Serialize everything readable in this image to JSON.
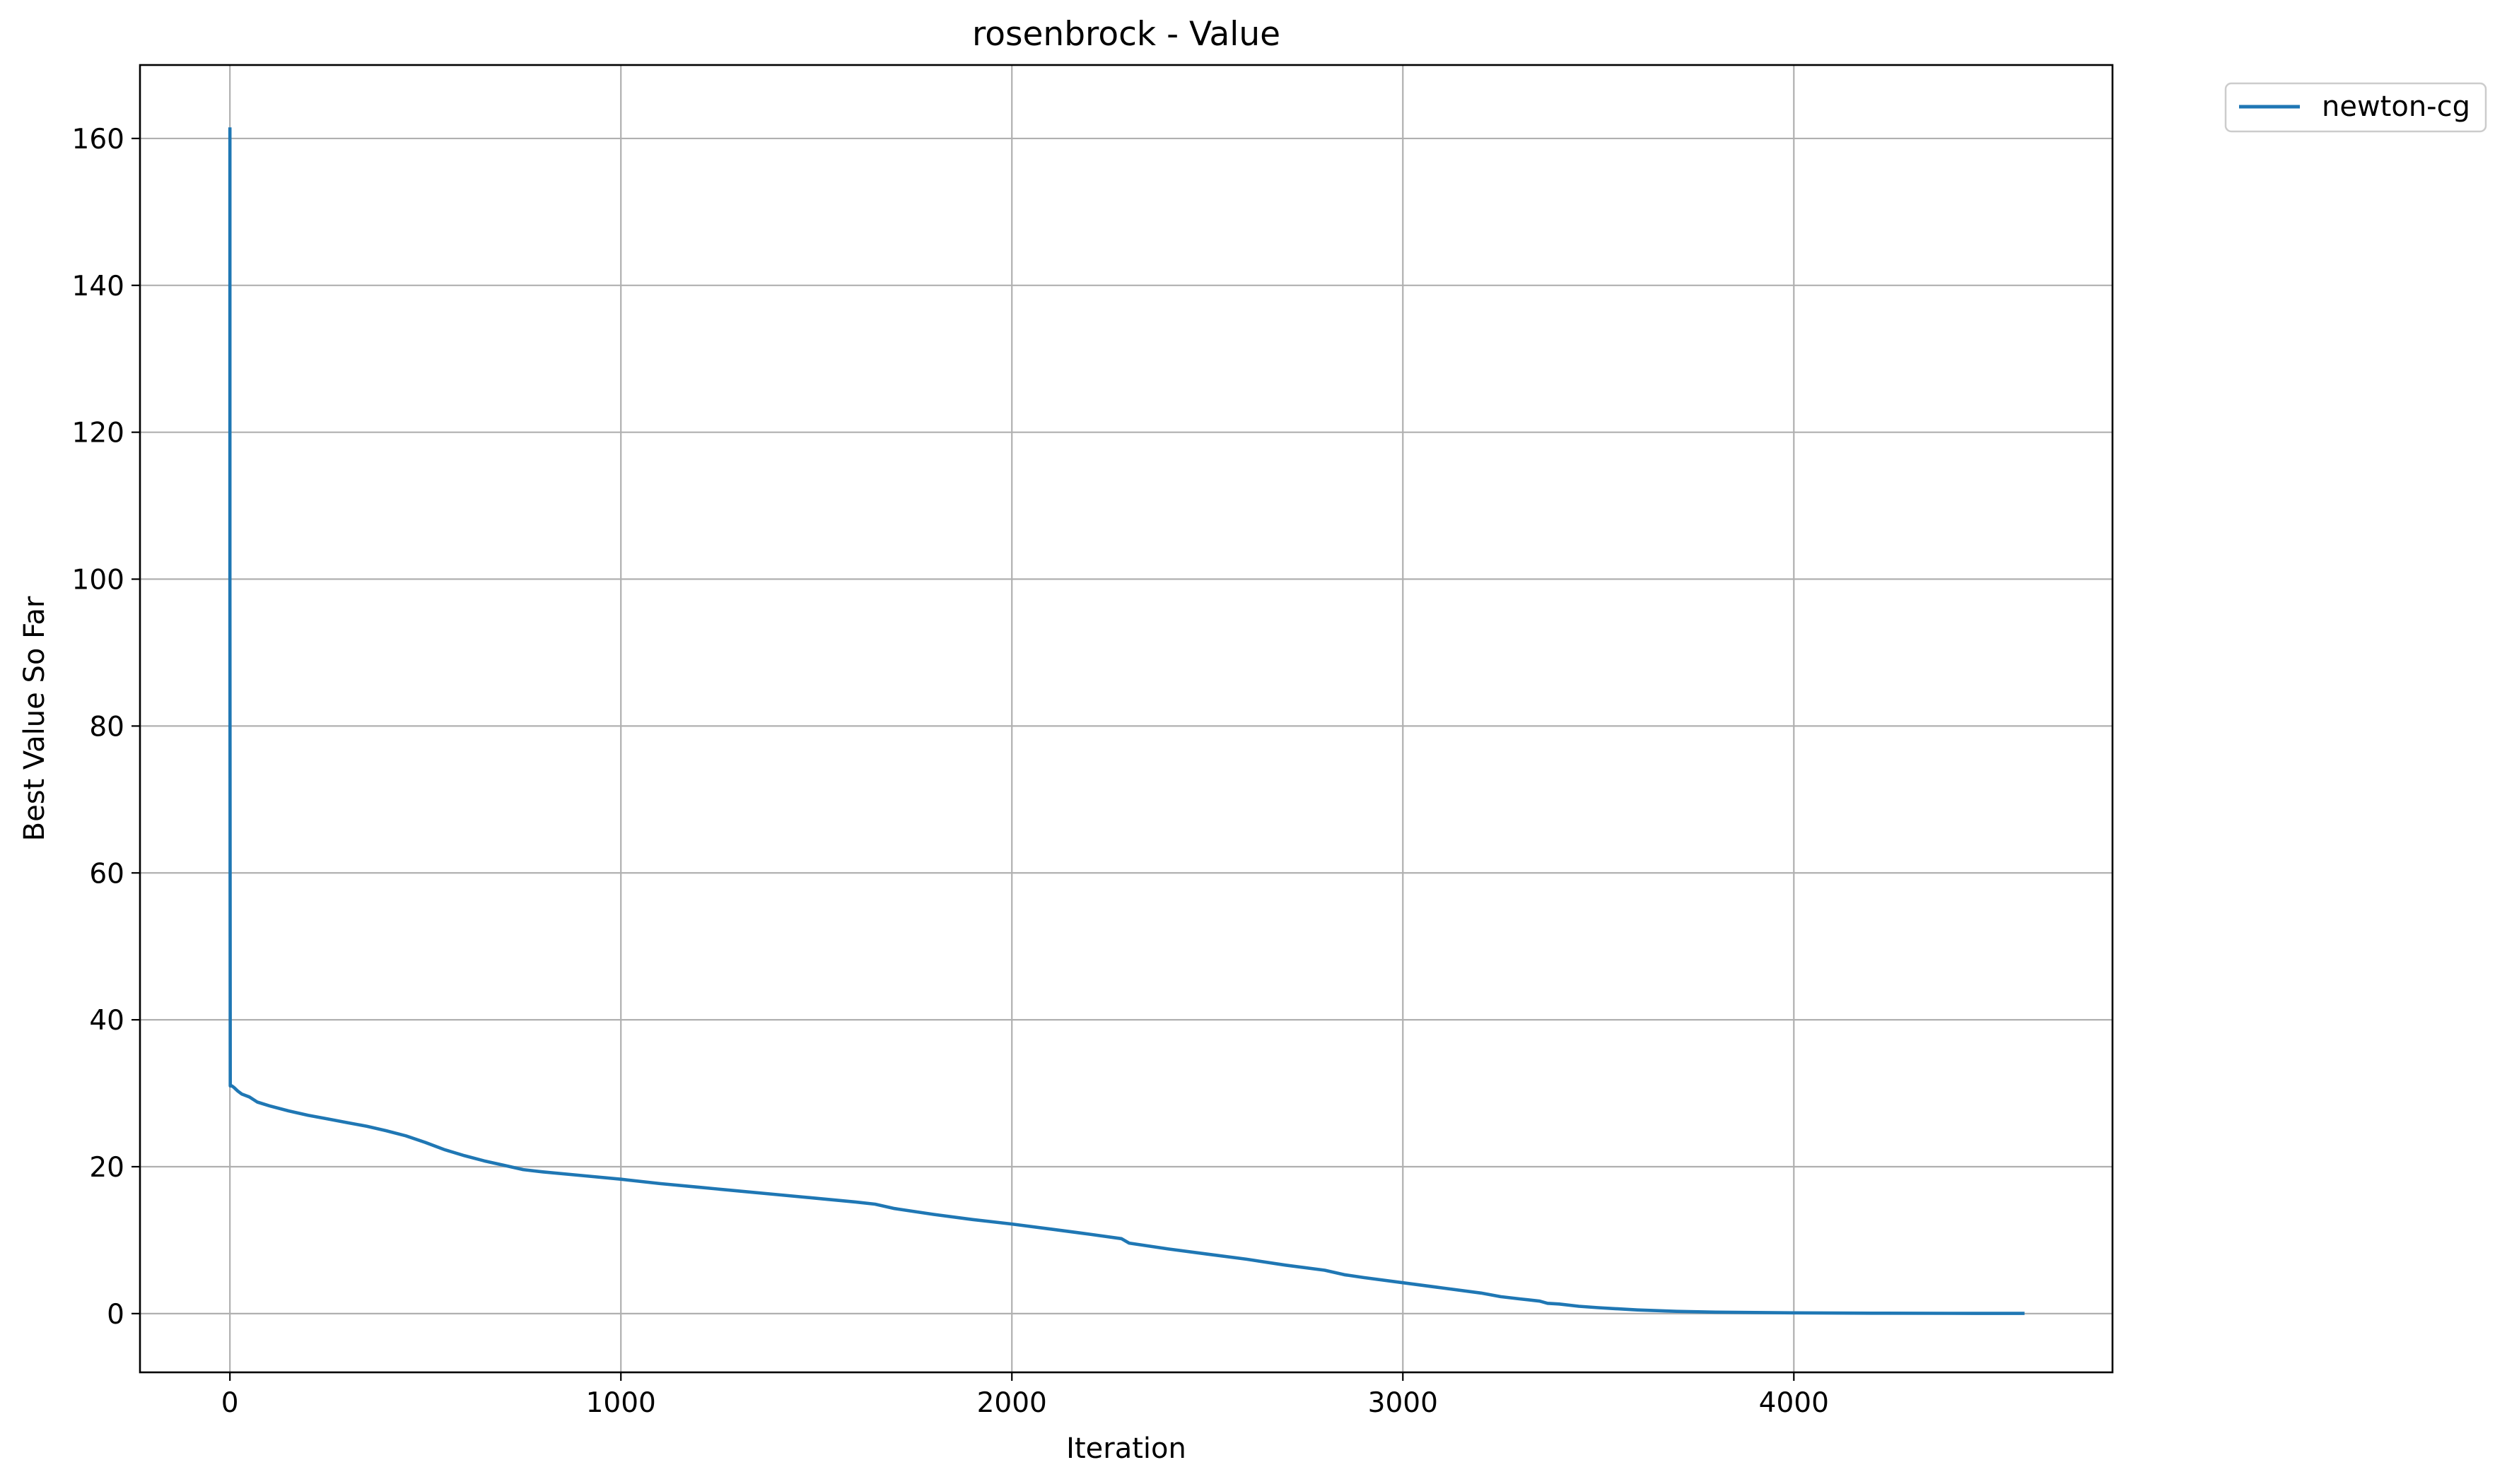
{
  "chart_data": {
    "type": "line",
    "title": "rosenbrock - Value",
    "xlabel": "Iteration",
    "ylabel": "Best Value So Far",
    "xlim": [
      -230,
      4815
    ],
    "ylim": [
      -8,
      170
    ],
    "xticks": [
      0,
      1000,
      2000,
      3000,
      4000
    ],
    "yticks": [
      0,
      20,
      40,
      60,
      80,
      100,
      120,
      140,
      160
    ],
    "grid": true,
    "legend_position": "outside-top-right",
    "colors": {
      "line": "#1f77b4",
      "grid": "#b0b0b0",
      "axes": "#000000"
    },
    "series": [
      {
        "name": "newton-cg",
        "color": "#1f77b4",
        "x": [
          0,
          0,
          1,
          2,
          3,
          5,
          10,
          20,
          30,
          50,
          70,
          100,
          150,
          200,
          250,
          300,
          350,
          400,
          450,
          500,
          550,
          600,
          650,
          700,
          750,
          800,
          900,
          1000,
          1100,
          1200,
          1300,
          1400,
          1500,
          1600,
          1650,
          1700,
          1800,
          1900,
          2000,
          2100,
          2200,
          2280,
          2300,
          2400,
          2500,
          2600,
          2700,
          2800,
          2850,
          2900,
          3000,
          3100,
          3200,
          3250,
          3300,
          3350,
          3370,
          3400,
          3450,
          3500,
          3600,
          3700,
          3800,
          3900,
          4000,
          4200,
          4400,
          4590
        ],
        "y": [
          161.5,
          100,
          31,
          31,
          31,
          31,
          30.8,
          30.3,
          29.9,
          29.5,
          28.8,
          28.3,
          27.6,
          27.0,
          26.5,
          26.0,
          25.5,
          24.9,
          24.2,
          23.3,
          22.3,
          21.5,
          20.8,
          20.2,
          19.6,
          19.3,
          18.8,
          18.3,
          17.7,
          17.2,
          16.7,
          16.2,
          15.7,
          15.2,
          14.9,
          14.3,
          13.5,
          12.8,
          12.2,
          11.5,
          10.8,
          10.2,
          9.6,
          8.8,
          8.1,
          7.4,
          6.6,
          5.9,
          5.3,
          4.9,
          4.2,
          3.5,
          2.8,
          2.3,
          2.0,
          1.7,
          1.4,
          1.3,
          1.0,
          0.8,
          0.5,
          0.3,
          0.2,
          0.15,
          0.1,
          0.05,
          0.03,
          0.02
        ]
      }
    ]
  }
}
